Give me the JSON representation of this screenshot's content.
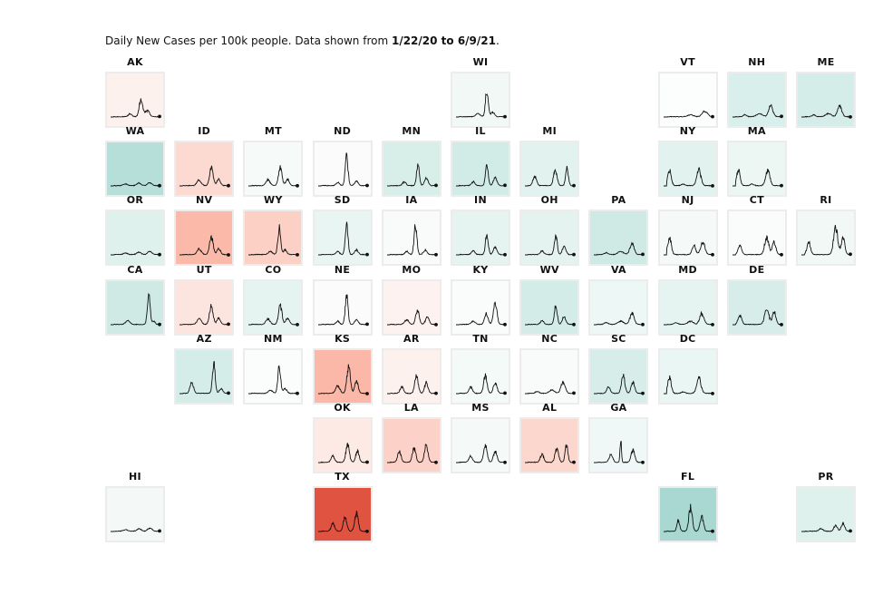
{
  "title": {
    "prefix": "Daily New Cases per 100k people. Data shown from ",
    "start": "1/22/20",
    "mid": " to ",
    "end": "6/9/21",
    "suffix": "."
  },
  "chart_data": {
    "type": "small-multiples-line",
    "x_range": [
      "1/22/20",
      "6/9/21"
    ],
    "grid_columns": 11,
    "grid_rows": 7,
    "legend": "none",
    "colors": {
      "high": "#e05341",
      "mid": "#ffffff",
      "low": "#a6d7d0"
    },
    "states": [
      {
        "name": "AK",
        "row": 0,
        "col": 0,
        "fill": "#fdf1ee",
        "shape": "ak"
      },
      {
        "name": "WI",
        "row": 0,
        "col": 5,
        "fill": "#f1f8f6",
        "shape": "wi"
      },
      {
        "name": "VT",
        "row": 0,
        "col": 8,
        "fill": "#fcfdfd",
        "shape": "vt"
      },
      {
        "name": "NH",
        "row": 0,
        "col": 9,
        "fill": "#d9efeb",
        "shape": "ne"
      },
      {
        "name": "ME",
        "row": 0,
        "col": 10,
        "fill": "#d5ede9",
        "shape": "ne"
      },
      {
        "name": "WA",
        "row": 1,
        "col": 0,
        "fill": "#b5dfd8",
        "shape": "flat"
      },
      {
        "name": "ID",
        "row": 1,
        "col": 1,
        "fill": "#fcd9d1",
        "shape": "mw"
      },
      {
        "name": "MT",
        "row": 1,
        "col": 2,
        "fill": "#f6faf9",
        "shape": "mw"
      },
      {
        "name": "ND",
        "row": 1,
        "col": 3,
        "fill": "#fbfbfb",
        "shape": "nd"
      },
      {
        "name": "MN",
        "row": 1,
        "col": 4,
        "fill": "#d8eee9",
        "shape": "mn"
      },
      {
        "name": "IL",
        "row": 1,
        "col": 5,
        "fill": "#d1ebe6",
        "shape": "mn"
      },
      {
        "name": "MI",
        "row": 1,
        "col": 6,
        "fill": "#e2f3ef",
        "shape": "mi"
      },
      {
        "name": "NY",
        "row": 1,
        "col": 8,
        "fill": "#e2f3ef",
        "shape": "ny"
      },
      {
        "name": "MA",
        "row": 1,
        "col": 9,
        "fill": "#ecf7f4",
        "shape": "ny"
      },
      {
        "name": "OR",
        "row": 2,
        "col": 0,
        "fill": "#dff1ed",
        "shape": "flat"
      },
      {
        "name": "NV",
        "row": 2,
        "col": 1,
        "fill": "#fbb9a9",
        "shape": "mw"
      },
      {
        "name": "WY",
        "row": 2,
        "col": 2,
        "fill": "#fcd0c5",
        "shape": "wi"
      },
      {
        "name": "SD",
        "row": 2,
        "col": 3,
        "fill": "#e8f5f2",
        "shape": "nd"
      },
      {
        "name": "IA",
        "row": 2,
        "col": 4,
        "fill": "#f8fbfa",
        "shape": "nd"
      },
      {
        "name": "IN",
        "row": 2,
        "col": 5,
        "fill": "#e6f4f1",
        "shape": "mn"
      },
      {
        "name": "OH",
        "row": 2,
        "col": 6,
        "fill": "#e4f3f0",
        "shape": "mn"
      },
      {
        "name": "PA",
        "row": 2,
        "col": 7,
        "fill": "#cfe9e4",
        "shape": "ne"
      },
      {
        "name": "NJ",
        "row": 2,
        "col": 8,
        "fill": "#f5faf9",
        "shape": "nj"
      },
      {
        "name": "CT",
        "row": 2,
        "col": 9,
        "fill": "#fafcfb",
        "shape": "ct"
      },
      {
        "name": "RI",
        "row": 2,
        "col": 10,
        "fill": "#f1f8f6",
        "shape": "ri"
      },
      {
        "name": "CA",
        "row": 3,
        "col": 0,
        "fill": "#cfe9e4",
        "shape": "ca"
      },
      {
        "name": "UT",
        "row": 3,
        "col": 1,
        "fill": "#fde5df",
        "shape": "mw"
      },
      {
        "name": "CO",
        "row": 3,
        "col": 2,
        "fill": "#e6f4f1",
        "shape": "mw"
      },
      {
        "name": "NE",
        "row": 3,
        "col": 3,
        "fill": "#fbfbfb",
        "shape": "nd"
      },
      {
        "name": "MO",
        "row": 3,
        "col": 4,
        "fill": "#fdf2ef",
        "shape": "mo"
      },
      {
        "name": "KY",
        "row": 3,
        "col": 5,
        "fill": "#fafcfb",
        "shape": "ky"
      },
      {
        "name": "WV",
        "row": 3,
        "col": 6,
        "fill": "#d4ece7",
        "shape": "mn"
      },
      {
        "name": "VA",
        "row": 3,
        "col": 7,
        "fill": "#edf7f5",
        "shape": "ne"
      },
      {
        "name": "MD",
        "row": 3,
        "col": 8,
        "fill": "#e6f4f1",
        "shape": "ne"
      },
      {
        "name": "DE",
        "row": 3,
        "col": 9,
        "fill": "#d6ede9",
        "shape": "ct"
      },
      {
        "name": "AZ",
        "row": 4,
        "col": 1,
        "fill": "#d5ede9",
        "shape": "az"
      },
      {
        "name": "NM",
        "row": 4,
        "col": 2,
        "fill": "#fbfcfc",
        "shape": "wi"
      },
      {
        "name": "KS",
        "row": 4,
        "col": 3,
        "fill": "#fbb7a7",
        "shape": "ks"
      },
      {
        "name": "AR",
        "row": 4,
        "col": 4,
        "fill": "#fdf1ee",
        "shape": "south"
      },
      {
        "name": "TN",
        "row": 4,
        "col": 5,
        "fill": "#f4faf8",
        "shape": "south"
      },
      {
        "name": "NC",
        "row": 4,
        "col": 6,
        "fill": "#f9fbfa",
        "shape": "ne"
      },
      {
        "name": "SC",
        "row": 4,
        "col": 7,
        "fill": "#d6ede9",
        "shape": "south"
      },
      {
        "name": "DC",
        "row": 4,
        "col": 8,
        "fill": "#eaf6f3",
        "shape": "ny"
      },
      {
        "name": "OK",
        "row": 5,
        "col": 3,
        "fill": "#fdeae5",
        "shape": "south"
      },
      {
        "name": "LA",
        "row": 5,
        "col": 4,
        "fill": "#fcd2c8",
        "shape": "la"
      },
      {
        "name": "MS",
        "row": 5,
        "col": 5,
        "fill": "#f5faf9",
        "shape": "south"
      },
      {
        "name": "AL",
        "row": 5,
        "col": 6,
        "fill": "#fcd7ce",
        "shape": "al"
      },
      {
        "name": "GA",
        "row": 5,
        "col": 7,
        "fill": "#eff8f6",
        "shape": "ga"
      },
      {
        "name": "HI",
        "row": 6,
        "col": 0,
        "fill": "#f4f9f8",
        "shape": "flat"
      },
      {
        "name": "TX",
        "row": 6,
        "col": 3,
        "fill": "#e05341",
        "shape": "tx"
      },
      {
        "name": "FL",
        "row": 6,
        "col": 8,
        "fill": "#a8d8d1",
        "shape": "fl"
      },
      {
        "name": "PR",
        "row": 6,
        "col": 10,
        "fill": "#dff1ed",
        "shape": "pr"
      }
    ]
  }
}
